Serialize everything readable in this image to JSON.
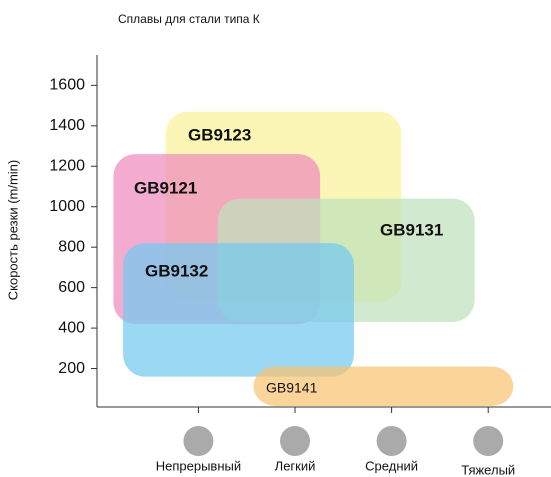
{
  "chart_data": {
    "type": "range",
    "title": "Сплавы для стали типа К",
    "y_label": "Скорость резки  (m/min)",
    "categories": [
      "Непрерывный",
      "Легкий",
      "Средний",
      "Тяжелый"
    ],
    "xlim": [
      -1.05,
      3.65
    ],
    "ylim": [
      0,
      1750
    ],
    "yticks": [
      200,
      400,
      600,
      800,
      1000,
      1200,
      1400,
      1600
    ],
    "series": [
      {
        "name": "GB9123",
        "color": "#fbf39a",
        "x": [
          -0.34,
          2.1
        ],
        "values": [
          530,
          1470
        ]
      },
      {
        "name": "GB9121",
        "color": "#ee8cbd",
        "x": [
          -0.88,
          1.26
        ],
        "values": [
          420,
          1260
        ]
      },
      {
        "name": "GB9131",
        "color": "#bfe0bb",
        "x": [
          0.2,
          2.86
        ],
        "values": [
          430,
          1040
        ]
      },
      {
        "name": "GB9132",
        "color": "#74c9f0",
        "x": [
          -0.78,
          1.61
        ],
        "values": [
          160,
          820
        ]
      },
      {
        "name": "GB9141",
        "color": "#f8c472",
        "x": [
          0.57,
          3.26
        ],
        "values": [
          15,
          210
        ]
      }
    ]
  }
}
